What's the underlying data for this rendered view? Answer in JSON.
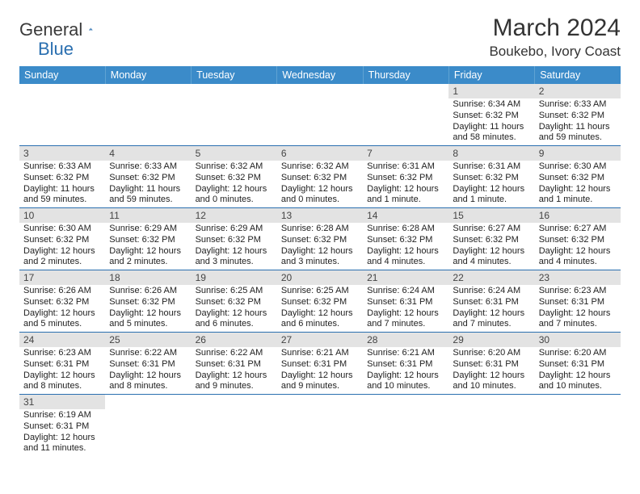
{
  "logo": {
    "text1": "General",
    "text2": "Blue"
  },
  "title": "March 2024",
  "location": "Boukebo, Ivory Coast",
  "colors": {
    "header_bg": "#3b8bc9",
    "header_text": "#ffffff",
    "daynum_bg": "#e3e3e3",
    "row_border": "#2a6fb0",
    "logo_blue": "#2a6fb0"
  },
  "weekdays": [
    "Sunday",
    "Monday",
    "Tuesday",
    "Wednesday",
    "Thursday",
    "Friday",
    "Saturday"
  ],
  "days": [
    {
      "n": 1,
      "sunrise": "6:34 AM",
      "sunset": "6:32 PM",
      "daylight": "11 hours and 58 minutes."
    },
    {
      "n": 2,
      "sunrise": "6:33 AM",
      "sunset": "6:32 PM",
      "daylight": "11 hours and 59 minutes."
    },
    {
      "n": 3,
      "sunrise": "6:33 AM",
      "sunset": "6:32 PM",
      "daylight": "11 hours and 59 minutes."
    },
    {
      "n": 4,
      "sunrise": "6:33 AM",
      "sunset": "6:32 PM",
      "daylight": "11 hours and 59 minutes."
    },
    {
      "n": 5,
      "sunrise": "6:32 AM",
      "sunset": "6:32 PM",
      "daylight": "12 hours and 0 minutes."
    },
    {
      "n": 6,
      "sunrise": "6:32 AM",
      "sunset": "6:32 PM",
      "daylight": "12 hours and 0 minutes."
    },
    {
      "n": 7,
      "sunrise": "6:31 AM",
      "sunset": "6:32 PM",
      "daylight": "12 hours and 1 minute."
    },
    {
      "n": 8,
      "sunrise": "6:31 AM",
      "sunset": "6:32 PM",
      "daylight": "12 hours and 1 minute."
    },
    {
      "n": 9,
      "sunrise": "6:30 AM",
      "sunset": "6:32 PM",
      "daylight": "12 hours and 1 minute."
    },
    {
      "n": 10,
      "sunrise": "6:30 AM",
      "sunset": "6:32 PM",
      "daylight": "12 hours and 2 minutes."
    },
    {
      "n": 11,
      "sunrise": "6:29 AM",
      "sunset": "6:32 PM",
      "daylight": "12 hours and 2 minutes."
    },
    {
      "n": 12,
      "sunrise": "6:29 AM",
      "sunset": "6:32 PM",
      "daylight": "12 hours and 3 minutes."
    },
    {
      "n": 13,
      "sunrise": "6:28 AM",
      "sunset": "6:32 PM",
      "daylight": "12 hours and 3 minutes."
    },
    {
      "n": 14,
      "sunrise": "6:28 AM",
      "sunset": "6:32 PM",
      "daylight": "12 hours and 4 minutes."
    },
    {
      "n": 15,
      "sunrise": "6:27 AM",
      "sunset": "6:32 PM",
      "daylight": "12 hours and 4 minutes."
    },
    {
      "n": 16,
      "sunrise": "6:27 AM",
      "sunset": "6:32 PM",
      "daylight": "12 hours and 4 minutes."
    },
    {
      "n": 17,
      "sunrise": "6:26 AM",
      "sunset": "6:32 PM",
      "daylight": "12 hours and 5 minutes."
    },
    {
      "n": 18,
      "sunrise": "6:26 AM",
      "sunset": "6:32 PM",
      "daylight": "12 hours and 5 minutes."
    },
    {
      "n": 19,
      "sunrise": "6:25 AM",
      "sunset": "6:32 PM",
      "daylight": "12 hours and 6 minutes."
    },
    {
      "n": 20,
      "sunrise": "6:25 AM",
      "sunset": "6:32 PM",
      "daylight": "12 hours and 6 minutes."
    },
    {
      "n": 21,
      "sunrise": "6:24 AM",
      "sunset": "6:31 PM",
      "daylight": "12 hours and 7 minutes."
    },
    {
      "n": 22,
      "sunrise": "6:24 AM",
      "sunset": "6:31 PM",
      "daylight": "12 hours and 7 minutes."
    },
    {
      "n": 23,
      "sunrise": "6:23 AM",
      "sunset": "6:31 PM",
      "daylight": "12 hours and 7 minutes."
    },
    {
      "n": 24,
      "sunrise": "6:23 AM",
      "sunset": "6:31 PM",
      "daylight": "12 hours and 8 minutes."
    },
    {
      "n": 25,
      "sunrise": "6:22 AM",
      "sunset": "6:31 PM",
      "daylight": "12 hours and 8 minutes."
    },
    {
      "n": 26,
      "sunrise": "6:22 AM",
      "sunset": "6:31 PM",
      "daylight": "12 hours and 9 minutes."
    },
    {
      "n": 27,
      "sunrise": "6:21 AM",
      "sunset": "6:31 PM",
      "daylight": "12 hours and 9 minutes."
    },
    {
      "n": 28,
      "sunrise": "6:21 AM",
      "sunset": "6:31 PM",
      "daylight": "12 hours and 10 minutes."
    },
    {
      "n": 29,
      "sunrise": "6:20 AM",
      "sunset": "6:31 PM",
      "daylight": "12 hours and 10 minutes."
    },
    {
      "n": 30,
      "sunrise": "6:20 AM",
      "sunset": "6:31 PM",
      "daylight": "12 hours and 10 minutes."
    },
    {
      "n": 31,
      "sunrise": "6:19 AM",
      "sunset": "6:31 PM",
      "daylight": "12 hours and 11 minutes."
    }
  ],
  "first_day_column": 5,
  "labels": {
    "sunrise": "Sunrise:",
    "sunset": "Sunset:",
    "daylight": "Daylight:"
  }
}
